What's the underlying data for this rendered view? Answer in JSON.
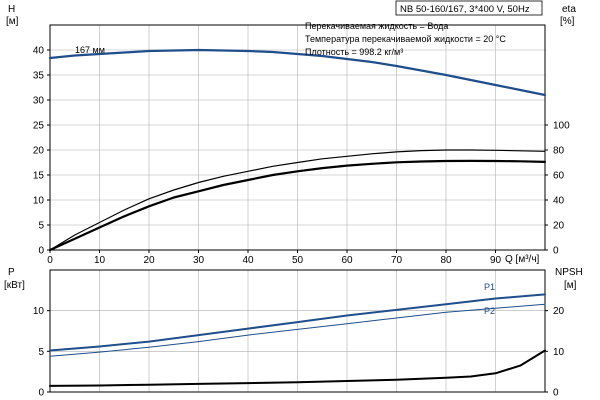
{
  "chart_data": [
    {
      "type": "line",
      "panel": "head-efficiency",
      "title": "NB 50-160/167, 3*400 V, 50Hz",
      "info_lines": [
        "Перекачиваемая жидкость = Вода",
        "Температура перекачиваемой жидкости = 20 °C",
        "Плотность = 998.2 кг/м³"
      ],
      "xlabel": "Q [м³/ч]",
      "xlim": [
        0,
        100
      ],
      "xticks": [
        0,
        10,
        20,
        30,
        40,
        50,
        60,
        70,
        80,
        90
      ],
      "left_axis": {
        "label_top": "H",
        "label_bottom": "[м]",
        "ylim": [
          0,
          45
        ],
        "ticks": [
          0,
          5,
          10,
          15,
          20,
          25,
          30,
          35,
          40
        ]
      },
      "right_axis": {
        "label_top": "eta",
        "label_bottom": "[%]",
        "ylim": [
          0,
          180
        ],
        "ticks": [
          0,
          20,
          40,
          60,
          80,
          100
        ]
      },
      "grid": true,
      "series": [
        {
          "name": "167 мм",
          "axis": "left",
          "color": "#1f4e8c",
          "width": 2.2,
          "x": [
            0,
            5,
            10,
            15,
            20,
            25,
            30,
            35,
            40,
            45,
            50,
            55,
            60,
            65,
            70,
            75,
            80,
            85,
            90,
            95,
            100
          ],
          "y": [
            38.4,
            38.9,
            39.2,
            39.5,
            39.8,
            39.9,
            40.0,
            39.9,
            39.8,
            39.6,
            39.2,
            38.8,
            38.2,
            37.6,
            36.8,
            35.9,
            35.0,
            34.0,
            33.0,
            32.0,
            31.0
          ]
        },
        {
          "axis": "right",
          "color": "#000000",
          "width": 1.2,
          "x": [
            0,
            5,
            10,
            15,
            20,
            25,
            30,
            35,
            40,
            45,
            50,
            55,
            60,
            65,
            70,
            75,
            80,
            85,
            90,
            95,
            100
          ],
          "y": [
            0,
            12,
            22,
            32,
            41,
            48,
            54,
            59,
            63,
            67,
            70,
            73,
            75,
            77,
            78.5,
            79.5,
            80,
            80,
            79.8,
            79.4,
            79
          ]
        },
        {
          "axis": "right",
          "color": "#000000",
          "width": 2.2,
          "x": [
            0,
            5,
            10,
            15,
            20,
            25,
            30,
            35,
            40,
            45,
            50,
            55,
            60,
            65,
            70,
            75,
            80,
            85,
            90,
            95,
            100
          ],
          "y": [
            0,
            9,
            18,
            27,
            35,
            42,
            47,
            52,
            56,
            60,
            63,
            65.5,
            67.5,
            69,
            70.2,
            70.8,
            71.2,
            71.3,
            71.2,
            71.0,
            70.5
          ]
        }
      ]
    },
    {
      "type": "line",
      "panel": "power-npsh",
      "xlim": [
        0,
        100
      ],
      "left_axis": {
        "label_top": "P",
        "label_bottom": "[кВт]",
        "ylim": [
          0,
          15
        ],
        "ticks": [
          0,
          5,
          10
        ]
      },
      "right_axis": {
        "label_top": "NPSH",
        "label_bottom": "[м]",
        "ylim": [
          0,
          30
        ],
        "ticks": [
          0,
          10,
          20
        ]
      },
      "grid": true,
      "series": [
        {
          "name": "P1",
          "axis": "left",
          "color": "#1f4e8c",
          "width": 2.0,
          "x": [
            0,
            10,
            20,
            30,
            40,
            50,
            60,
            70,
            80,
            90,
            100
          ],
          "y": [
            5.1,
            5.6,
            6.2,
            7.0,
            7.8,
            8.6,
            9.4,
            10.1,
            10.8,
            11.5,
            12.0
          ]
        },
        {
          "name": "P2",
          "axis": "left",
          "color": "#1f4e8c",
          "width": 1.0,
          "x": [
            0,
            10,
            20,
            30,
            40,
            50,
            60,
            70,
            80,
            90,
            100
          ],
          "y": [
            4.4,
            4.9,
            5.5,
            6.2,
            7.0,
            7.7,
            8.4,
            9.1,
            9.8,
            10.3,
            10.8
          ]
        },
        {
          "axis": "right",
          "color": "#000000",
          "width": 2.0,
          "x": [
            0,
            10,
            20,
            30,
            40,
            50,
            60,
            70,
            80,
            85,
            90,
            95,
            100
          ],
          "y": [
            1.5,
            1.6,
            1.8,
            2.0,
            2.2,
            2.4,
            2.7,
            3.0,
            3.5,
            3.8,
            4.6,
            6.5,
            10.2
          ]
        }
      ]
    }
  ]
}
